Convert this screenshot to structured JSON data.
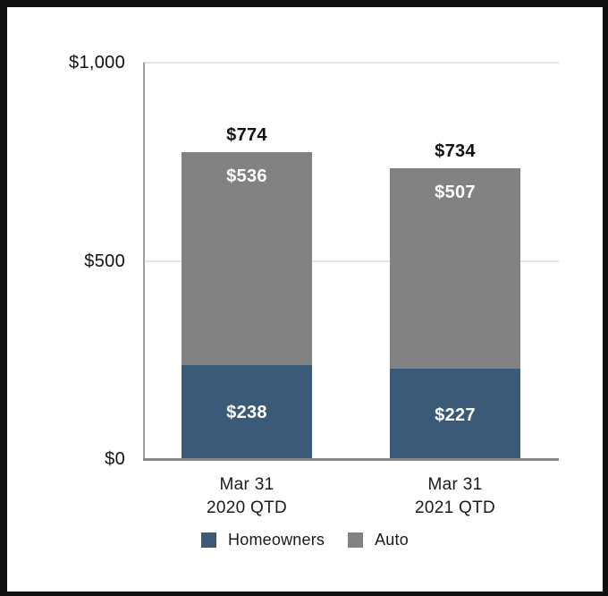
{
  "figure": {
    "background": "#ffffff",
    "border_color": "#0f0f0f",
    "axis_line_color": "#9c9c9c",
    "baseline_color": "#8a8a8a",
    "gridline_color": "#e4e4e4"
  },
  "chart_data": {
    "type": "bar",
    "stacked": true,
    "title": "",
    "xlabel": "",
    "ylabel": "",
    "categories": [
      {
        "line1": "Mar 31",
        "line2": "2020 QTD"
      },
      {
        "line1": "Mar 31",
        "line2": "2021 QTD"
      }
    ],
    "series": [
      {
        "name": "Homeowners",
        "color": "#3A5A77",
        "values": [
          238,
          227
        ],
        "labels": [
          "$238",
          "$227"
        ],
        "label_color": "#ffffff"
      },
      {
        "name": "Auto",
        "color": "#828282",
        "values": [
          536,
          507
        ],
        "labels": [
          "$536",
          "$507"
        ],
        "label_color": "#ffffff"
      }
    ],
    "totals": {
      "values": [
        774,
        734
      ],
      "labels": [
        "$774",
        "$734"
      ]
    },
    "ylim": [
      0,
      1000
    ],
    "yticks": [
      {
        "value": 0,
        "label": "$0"
      },
      {
        "value": 500,
        "label": "$500"
      },
      {
        "value": 1000,
        "label": "$1,000"
      }
    ],
    "grid": "horizontal",
    "legend_position": "bottom"
  }
}
